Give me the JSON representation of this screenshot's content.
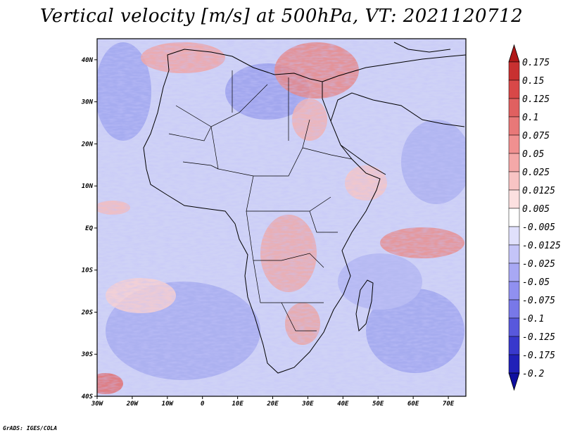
{
  "title": "Vertical velocity [m/s] at 500hPa, VT: 2021120712",
  "credit": "GrADS: IGES/COLA",
  "map": {
    "lon_range": [
      -30,
      75
    ],
    "lat_range": [
      -40,
      45
    ],
    "lon_ticks": [
      "30W",
      "20W",
      "10W",
      "0",
      "10E",
      "20E",
      "30E",
      "40E",
      "50E",
      "60E",
      "70E"
    ],
    "lat_ticks": [
      "40N",
      "30N",
      "20N",
      "10N",
      "EQ",
      "10S",
      "20S",
      "30S",
      "40S"
    ],
    "variable": "Vertical velocity",
    "units": "m/s",
    "level": "500hPa",
    "valid_time": "2021120712"
  },
  "colorbar": {
    "levels": [
      "0.175",
      "0.15",
      "0.125",
      "0.1",
      "0.075",
      "0.05",
      "0.025",
      "0.0125",
      "0.005",
      "-0.005",
      "-0.0125",
      "-0.025",
      "-0.05",
      "-0.075",
      "-0.1",
      "-0.125",
      "-0.175",
      "-0.2"
    ],
    "colors": [
      "#b01818",
      "#c83030",
      "#d84848",
      "#e06060",
      "#e87878",
      "#f09090",
      "#f4a8a8",
      "#f8c4c4",
      "#fce0e0",
      "#ffffff",
      "#e0e0fc",
      "#c4c4f8",
      "#a8a8f4",
      "#9090f0",
      "#7878e8",
      "#5858dc",
      "#3838cc",
      "#2020b8",
      "#1010a0"
    ]
  }
}
